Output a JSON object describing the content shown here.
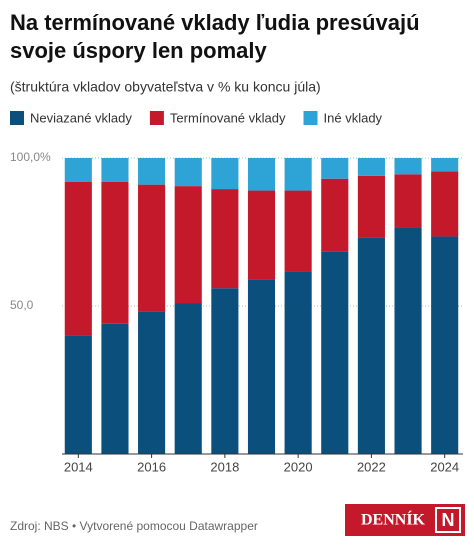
{
  "chart_data": {
    "type": "stacked-bar",
    "title": [
      "Na termínované vklady ľudia presúvajú",
      "svoje úspory len pomaly"
    ],
    "subtitle": "(štruktúra vkladov obyvateľstva v % ku koncu júla)",
    "x": [
      2014,
      2015,
      2016,
      2017,
      2018,
      2019,
      2020,
      2021,
      2022,
      2023,
      2024
    ],
    "xlim": [
      2013.5,
      2024.5
    ],
    "xticks": [
      2014,
      2016,
      2018,
      2020,
      2022,
      2024
    ],
    "ylim": [
      0,
      100
    ],
    "yticks": [
      {
        "value": 50,
        "label": "50,0"
      },
      {
        "value": 100,
        "label": "100,0%"
      }
    ],
    "grid": true,
    "series": [
      {
        "name": "Neviazané vklady",
        "color": "#0b4f7c",
        "values": [
          40,
          44,
          48,
          51,
          56,
          59,
          61.5,
          68.5,
          73,
          76.5,
          73.5
        ]
      },
      {
        "name": "Termínované vklady",
        "color": "#c3192b",
        "values": [
          52,
          48,
          43,
          39.5,
          33.5,
          30,
          27.5,
          24.5,
          21,
          18,
          22
        ]
      },
      {
        "name": "Iné vklady",
        "color": "#2ea3d6",
        "values": [
          8,
          8,
          9,
          9.5,
          10.5,
          11,
          11,
          7,
          6,
          5.5,
          4.5
        ]
      }
    ],
    "source": "Zdroj: NBS • Vytvorené pomocou Datawrapper",
    "logo": [
      "DENNÍK",
      "N"
    ]
  }
}
